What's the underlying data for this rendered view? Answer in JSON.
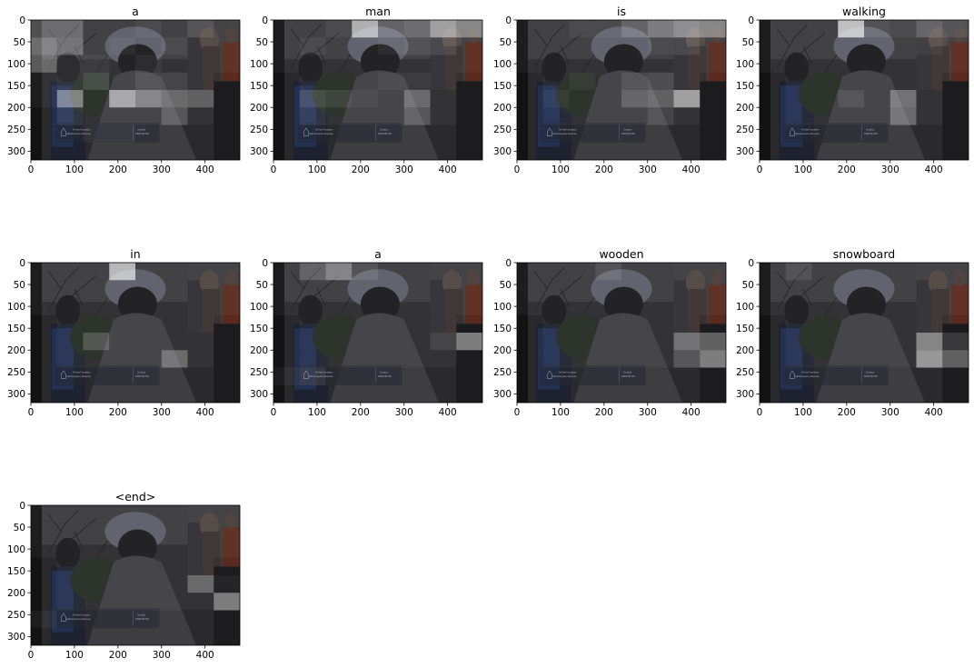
{
  "chart_data": {
    "type": "heatmap",
    "description_kind": "attention map grid",
    "xlim": [
      0,
      480
    ],
    "ylim": [
      320,
      0
    ],
    "x_ticks": [
      0,
      100,
      200,
      300,
      400
    ],
    "y_ticks": [
      0,
      50,
      100,
      150,
      200,
      250,
      300
    ],
    "grid_cols": 8,
    "grid_rows": 8,
    "image_text": {
      "line1_left": "Al-Khair Foundation",
      "line2_left": "Haiti Emergency Response",
      "line1_right": "Donation",
      "line2_right": "03000 999 786"
    },
    "panels": [
      {
        "title": "a",
        "attention": [
          [
            0.35,
            0.35,
            0.1,
            0.1,
            0.15,
            0.1,
            0.2,
            0.1
          ],
          [
            0.5,
            0.4,
            0.1,
            0.15,
            0.1,
            0.15,
            0.1,
            0.1
          ],
          [
            0.4,
            0.15,
            0.15,
            0.1,
            0.15,
            0.1,
            0.1,
            0.1
          ],
          [
            0.1,
            0.15,
            0.25,
            0.1,
            0.2,
            0.2,
            0.1,
            0.05
          ],
          [
            0.1,
            0.55,
            0.1,
            0.7,
            0.5,
            0.4,
            0.35,
            0.05
          ],
          [
            0.05,
            0.15,
            0.1,
            0.1,
            0.1,
            0.3,
            0.1,
            0.05
          ],
          [
            0.05,
            0.05,
            0.1,
            0.1,
            0.05,
            0.05,
            0.05,
            0.05
          ],
          [
            0.05,
            0.05,
            0.05,
            0.05,
            0.05,
            0.05,
            0.05,
            0.05
          ]
        ]
      },
      {
        "title": "man",
        "attention": [
          [
            0.1,
            0.1,
            0.15,
            0.75,
            0.3,
            0.35,
            0.65,
            0.5
          ],
          [
            0.1,
            0.15,
            0.1,
            0.1,
            0.15,
            0.2,
            0.2,
            0.1
          ],
          [
            0.1,
            0.1,
            0.1,
            0.1,
            0.1,
            0.1,
            0.1,
            0.1
          ],
          [
            0.05,
            0.1,
            0.1,
            0.1,
            0.15,
            0.15,
            0.1,
            0.05
          ],
          [
            0.05,
            0.25,
            0.2,
            0.15,
            0.1,
            0.4,
            0.1,
            0.05
          ],
          [
            0.05,
            0.15,
            0.1,
            0.1,
            0.1,
            0.3,
            0.1,
            0.05
          ],
          [
            0.05,
            0.05,
            0.05,
            0.05,
            0.05,
            0.05,
            0.05,
            0.05
          ],
          [
            0.05,
            0.05,
            0.05,
            0.05,
            0.05,
            0.05,
            0.05,
            0.05
          ]
        ]
      },
      {
        "title": "is",
        "attention": [
          [
            0.1,
            0.1,
            0.15,
            0.15,
            0.3,
            0.45,
            0.55,
            0.5
          ],
          [
            0.1,
            0.1,
            0.1,
            0.1,
            0.1,
            0.15,
            0.2,
            0.1
          ],
          [
            0.1,
            0.1,
            0.1,
            0.1,
            0.1,
            0.1,
            0.1,
            0.1
          ],
          [
            0.05,
            0.1,
            0.15,
            0.1,
            0.2,
            0.25,
            0.1,
            0.05
          ],
          [
            0.05,
            0.15,
            0.1,
            0.1,
            0.3,
            0.35,
            0.7,
            0.05
          ],
          [
            0.05,
            0.1,
            0.1,
            0.1,
            0.1,
            0.2,
            0.1,
            0.05
          ],
          [
            0.05,
            0.05,
            0.05,
            0.05,
            0.05,
            0.05,
            0.05,
            0.05
          ],
          [
            0.05,
            0.05,
            0.05,
            0.05,
            0.05,
            0.05,
            0.05,
            0.05
          ]
        ]
      },
      {
        "title": "walking",
        "attention": [
          [
            0.1,
            0.1,
            0.1,
            0.85,
            0.2,
            0.15,
            0.3,
            0.2
          ],
          [
            0.1,
            0.1,
            0.1,
            0.1,
            0.1,
            0.1,
            0.15,
            0.1
          ],
          [
            0.1,
            0.1,
            0.1,
            0.1,
            0.1,
            0.1,
            0.1,
            0.1
          ],
          [
            0.05,
            0.1,
            0.1,
            0.1,
            0.1,
            0.1,
            0.1,
            0.05
          ],
          [
            0.05,
            0.1,
            0.1,
            0.2,
            0.1,
            0.45,
            0.1,
            0.05
          ],
          [
            0.05,
            0.1,
            0.1,
            0.1,
            0.1,
            0.4,
            0.1,
            0.05
          ],
          [
            0.05,
            0.05,
            0.05,
            0.05,
            0.05,
            0.05,
            0.05,
            0.05
          ],
          [
            0.05,
            0.05,
            0.05,
            0.05,
            0.05,
            0.05,
            0.05,
            0.05
          ]
        ]
      },
      {
        "title": "in",
        "attention": [
          [
            0.1,
            0.1,
            0.1,
            0.8,
            0.1,
            0.1,
            0.1,
            0.1
          ],
          [
            0.1,
            0.1,
            0.1,
            0.1,
            0.1,
            0.1,
            0.1,
            0.1
          ],
          [
            0.1,
            0.1,
            0.1,
            0.1,
            0.1,
            0.1,
            0.1,
            0.1
          ],
          [
            0.05,
            0.1,
            0.1,
            0.1,
            0.1,
            0.1,
            0.1,
            0.05
          ],
          [
            0.05,
            0.1,
            0.3,
            0.1,
            0.1,
            0.1,
            0.1,
            0.05
          ],
          [
            0.05,
            0.1,
            0.1,
            0.1,
            0.1,
            0.4,
            0.1,
            0.05
          ],
          [
            0.05,
            0.05,
            0.05,
            0.05,
            0.05,
            0.05,
            0.05,
            0.05
          ],
          [
            0.05,
            0.05,
            0.05,
            0.05,
            0.05,
            0.05,
            0.05,
            0.05
          ]
        ]
      },
      {
        "title": "a",
        "attention": [
          [
            0.1,
            0.3,
            0.5,
            0.2,
            0.1,
            0.1,
            0.1,
            0.1
          ],
          [
            0.1,
            0.1,
            0.1,
            0.1,
            0.1,
            0.1,
            0.1,
            0.1
          ],
          [
            0.1,
            0.1,
            0.1,
            0.1,
            0.1,
            0.1,
            0.1,
            0.1
          ],
          [
            0.05,
            0.1,
            0.1,
            0.1,
            0.1,
            0.1,
            0.1,
            0.05
          ],
          [
            0.05,
            0.1,
            0.1,
            0.1,
            0.1,
            0.1,
            0.2,
            0.55
          ],
          [
            0.05,
            0.1,
            0.1,
            0.1,
            0.1,
            0.1,
            0.1,
            0.05
          ],
          [
            0.1,
            0.15,
            0.05,
            0.05,
            0.05,
            0.05,
            0.05,
            0.05
          ],
          [
            0.05,
            0.05,
            0.05,
            0.05,
            0.05,
            0.05,
            0.05,
            0.05
          ]
        ]
      },
      {
        "title": "wooden",
        "attention": [
          [
            0.1,
            0.1,
            0.1,
            0.2,
            0.1,
            0.1,
            0.1,
            0.1
          ],
          [
            0.1,
            0.1,
            0.1,
            0.1,
            0.1,
            0.1,
            0.1,
            0.1
          ],
          [
            0.1,
            0.1,
            0.1,
            0.1,
            0.1,
            0.1,
            0.1,
            0.1
          ],
          [
            0.05,
            0.1,
            0.1,
            0.1,
            0.1,
            0.1,
            0.1,
            0.05
          ],
          [
            0.05,
            0.1,
            0.1,
            0.1,
            0.1,
            0.1,
            0.45,
            0.4
          ],
          [
            0.05,
            0.1,
            0.1,
            0.1,
            0.1,
            0.1,
            0.3,
            0.55
          ],
          [
            0.05,
            0.05,
            0.05,
            0.05,
            0.05,
            0.05,
            0.05,
            0.05
          ],
          [
            0.05,
            0.05,
            0.05,
            0.05,
            0.05,
            0.05,
            0.05,
            0.05
          ]
        ]
      },
      {
        "title": "snowboard",
        "attention": [
          [
            0.1,
            0.2,
            0.1,
            0.1,
            0.1,
            0.1,
            0.1,
            0.1
          ],
          [
            0.1,
            0.1,
            0.1,
            0.1,
            0.1,
            0.1,
            0.1,
            0.1
          ],
          [
            0.1,
            0.1,
            0.1,
            0.1,
            0.1,
            0.1,
            0.1,
            0.1
          ],
          [
            0.05,
            0.1,
            0.1,
            0.1,
            0.1,
            0.1,
            0.1,
            0.05
          ],
          [
            0.05,
            0.1,
            0.1,
            0.1,
            0.1,
            0.1,
            0.55,
            0.2
          ],
          [
            0.05,
            0.1,
            0.1,
            0.1,
            0.1,
            0.1,
            0.65,
            0.4
          ],
          [
            0.05,
            0.05,
            0.05,
            0.05,
            0.05,
            0.05,
            0.05,
            0.05
          ],
          [
            0.05,
            0.05,
            0.05,
            0.05,
            0.05,
            0.05,
            0.05,
            0.05
          ]
        ]
      },
      {
        "title": "<end>",
        "attention": [
          [
            0.1,
            0.1,
            0.1,
            0.1,
            0.1,
            0.1,
            0.1,
            0.1
          ],
          [
            0.1,
            0.1,
            0.1,
            0.1,
            0.1,
            0.1,
            0.1,
            0.1
          ],
          [
            0.1,
            0.1,
            0.1,
            0.1,
            0.1,
            0.1,
            0.1,
            0.1
          ],
          [
            0.05,
            0.1,
            0.1,
            0.1,
            0.1,
            0.1,
            0.1,
            0.05
          ],
          [
            0.05,
            0.1,
            0.1,
            0.1,
            0.1,
            0.1,
            0.4,
            0.1
          ],
          [
            0.05,
            0.1,
            0.1,
            0.1,
            0.1,
            0.1,
            0.1,
            0.55
          ],
          [
            0.1,
            0.05,
            0.05,
            0.05,
            0.05,
            0.05,
            0.05,
            0.05
          ],
          [
            0.05,
            0.05,
            0.05,
            0.05,
            0.05,
            0.05,
            0.05,
            0.05
          ]
        ]
      }
    ]
  }
}
